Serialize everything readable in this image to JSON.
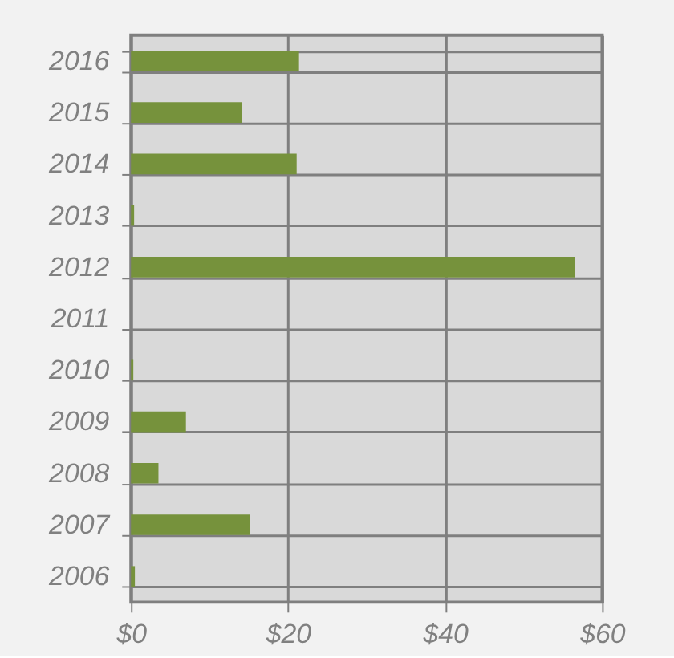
{
  "chart_data": {
    "type": "bar",
    "orientation": "horizontal",
    "categories": [
      "2016",
      "2015",
      "2014",
      "2013",
      "2012",
      "2011",
      "2010",
      "2009",
      "2008",
      "2007",
      "2006"
    ],
    "values": [
      21.4,
      14.1,
      21.1,
      0.4,
      56.5,
      0,
      0.3,
      7.0,
      3.5,
      15.2,
      0.5
    ],
    "color": "#76923c",
    "xlim": [
      0,
      60
    ],
    "xticks": [
      {
        "value": 0,
        "label": "$0"
      },
      {
        "value": 20,
        "label": "$20"
      },
      {
        "value": 40,
        "label": "$40"
      },
      {
        "value": 60,
        "label": "$60"
      }
    ],
    "grid": true
  }
}
